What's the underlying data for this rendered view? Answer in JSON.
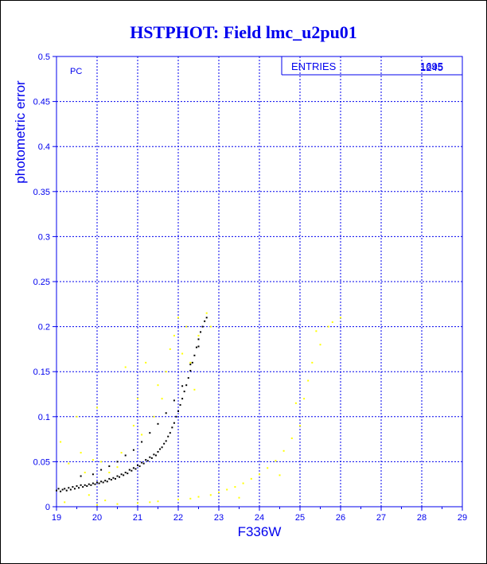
{
  "chart_data": {
    "type": "scatter",
    "title": "HSTPHOT: Field lmc_u2pu01",
    "xlabel": "F336W",
    "ylabel": "photometric error",
    "xlim": [
      19,
      29
    ],
    "ylim": [
      0,
      0.5
    ],
    "x_ticks": [
      "19",
      "20",
      "21",
      "22",
      "23",
      "24",
      "25",
      "26",
      "27",
      "28",
      "29"
    ],
    "y_ticks": [
      "0",
      "0.05",
      "0.1",
      "0.15",
      "0.2",
      "0.25",
      "0.3",
      "0.35",
      "0.4",
      "0.45",
      "0.5"
    ],
    "grid": true,
    "annotation": "PC",
    "stats_box": {
      "label": "ENTRIES",
      "value": "1695",
      "overlay_value": "1245"
    },
    "series": [
      {
        "color": "#000000",
        "points": [
          [
            19.0,
            0.018
          ],
          [
            19.05,
            0.02
          ],
          [
            19.1,
            0.017
          ],
          [
            19.15,
            0.019
          ],
          [
            19.2,
            0.02
          ],
          [
            19.25,
            0.018
          ],
          [
            19.3,
            0.021
          ],
          [
            19.35,
            0.019
          ],
          [
            19.4,
            0.022
          ],
          [
            19.45,
            0.02
          ],
          [
            19.5,
            0.023
          ],
          [
            19.55,
            0.021
          ],
          [
            19.6,
            0.024
          ],
          [
            19.65,
            0.022
          ],
          [
            19.7,
            0.024
          ],
          [
            19.75,
            0.023
          ],
          [
            19.8,
            0.025
          ],
          [
            19.85,
            0.024
          ],
          [
            19.9,
            0.026
          ],
          [
            19.95,
            0.025
          ],
          [
            20.0,
            0.027
          ],
          [
            20.05,
            0.026
          ],
          [
            20.1,
            0.028
          ],
          [
            20.15,
            0.027
          ],
          [
            20.2,
            0.029
          ],
          [
            20.25,
            0.028
          ],
          [
            20.3,
            0.031
          ],
          [
            20.35,
            0.03
          ],
          [
            20.4,
            0.032
          ],
          [
            20.45,
            0.031
          ],
          [
            20.5,
            0.034
          ],
          [
            20.55,
            0.033
          ],
          [
            20.6,
            0.036
          ],
          [
            20.65,
            0.035
          ],
          [
            20.7,
            0.038
          ],
          [
            20.75,
            0.037
          ],
          [
            20.8,
            0.041
          ],
          [
            20.85,
            0.04
          ],
          [
            20.9,
            0.043
          ],
          [
            20.95,
            0.042
          ],
          [
            21.0,
            0.046
          ],
          [
            21.05,
            0.045
          ],
          [
            21.1,
            0.049
          ],
          [
            21.15,
            0.048
          ],
          [
            21.2,
            0.052
          ],
          [
            21.25,
            0.051
          ],
          [
            21.3,
            0.055
          ],
          [
            21.35,
            0.054
          ],
          [
            21.4,
            0.058
          ],
          [
            21.45,
            0.057
          ],
          [
            21.5,
            0.061
          ],
          [
            21.55,
            0.064
          ],
          [
            21.6,
            0.066
          ],
          [
            21.65,
            0.07
          ],
          [
            21.7,
            0.073
          ],
          [
            21.75,
            0.078
          ],
          [
            21.8,
            0.082
          ],
          [
            21.85,
            0.088
          ],
          [
            21.9,
            0.093
          ],
          [
            21.95,
            0.1
          ],
          [
            22.0,
            0.106
          ],
          [
            22.05,
            0.113
          ],
          [
            22.1,
            0.12
          ],
          [
            22.15,
            0.128
          ],
          [
            22.2,
            0.135
          ],
          [
            22.25,
            0.143
          ],
          [
            22.3,
            0.151
          ],
          [
            22.35,
            0.16
          ],
          [
            22.4,
            0.168
          ],
          [
            22.45,
            0.177
          ],
          [
            22.5,
            0.186
          ],
          [
            22.55,
            0.194
          ],
          [
            22.6,
            0.2
          ],
          [
            22.65,
            0.206
          ],
          [
            22.7,
            0.21
          ],
          [
            19.6,
            0.034
          ],
          [
            19.9,
            0.036
          ],
          [
            20.1,
            0.041
          ],
          [
            20.3,
            0.045
          ],
          [
            20.5,
            0.05
          ],
          [
            20.7,
            0.057
          ],
          [
            20.9,
            0.063
          ],
          [
            21.1,
            0.072
          ],
          [
            21.3,
            0.082
          ],
          [
            21.5,
            0.092
          ],
          [
            21.7,
            0.104
          ],
          [
            21.9,
            0.118
          ],
          [
            22.1,
            0.134
          ],
          [
            22.3,
            0.158
          ],
          [
            22.5,
            0.178
          ]
        ]
      },
      {
        "color": "#ffff00",
        "points": [
          [
            19.1,
            0.072
          ],
          [
            19.3,
            0.048
          ],
          [
            19.5,
            0.1
          ],
          [
            19.6,
            0.06
          ],
          [
            19.7,
            0.038
          ],
          [
            19.9,
            0.052
          ],
          [
            20.0,
            0.11
          ],
          [
            20.1,
            0.05
          ],
          [
            20.3,
            0.038
          ],
          [
            20.5,
            0.044
          ],
          [
            20.6,
            0.06
          ],
          [
            20.7,
            0.155
          ],
          [
            20.9,
            0.09
          ],
          [
            21.0,
            0.12
          ],
          [
            21.1,
            0.08
          ],
          [
            21.2,
            0.16
          ],
          [
            21.4,
            0.1
          ],
          [
            21.5,
            0.135
          ],
          [
            21.6,
            0.12
          ],
          [
            21.7,
            0.15
          ],
          [
            21.8,
            0.175
          ],
          [
            21.9,
            0.19
          ],
          [
            22.0,
            0.21
          ],
          [
            22.1,
            0.17
          ],
          [
            22.2,
            0.2
          ],
          [
            22.3,
            0.16
          ],
          [
            22.4,
            0.13
          ],
          [
            22.5,
            0.19
          ],
          [
            22.7,
            0.215
          ],
          [
            22.8,
            0.2
          ],
          [
            20.0,
            0.002
          ],
          [
            20.5,
            0.003
          ],
          [
            21.0,
            0.004
          ],
          [
            21.5,
            0.006
          ],
          [
            22.0,
            0.008
          ],
          [
            22.3,
            0.009
          ],
          [
            22.5,
            0.011
          ],
          [
            22.8,
            0.013
          ],
          [
            23.0,
            0.016
          ],
          [
            23.2,
            0.019
          ],
          [
            23.4,
            0.022
          ],
          [
            23.6,
            0.026
          ],
          [
            23.8,
            0.031
          ],
          [
            24.0,
            0.036
          ],
          [
            24.2,
            0.043
          ],
          [
            24.4,
            0.051
          ],
          [
            24.6,
            0.062
          ],
          [
            24.8,
            0.076
          ],
          [
            25.0,
            0.09
          ],
          [
            25.1,
            0.12
          ],
          [
            25.2,
            0.14
          ],
          [
            25.3,
            0.16
          ],
          [
            25.5,
            0.18
          ],
          [
            25.7,
            0.2
          ],
          [
            25.8,
            0.205
          ],
          [
            19.2,
            0.005
          ],
          [
            19.8,
            0.013
          ],
          [
            20.2,
            0.007
          ],
          [
            21.3,
            0.005
          ],
          [
            23.5,
            0.01
          ],
          [
            24.5,
            0.035
          ],
          [
            26.0,
            0.21
          ],
          [
            25.4,
            0.195
          ],
          [
            24.9,
            0.115
          ]
        ]
      }
    ]
  }
}
